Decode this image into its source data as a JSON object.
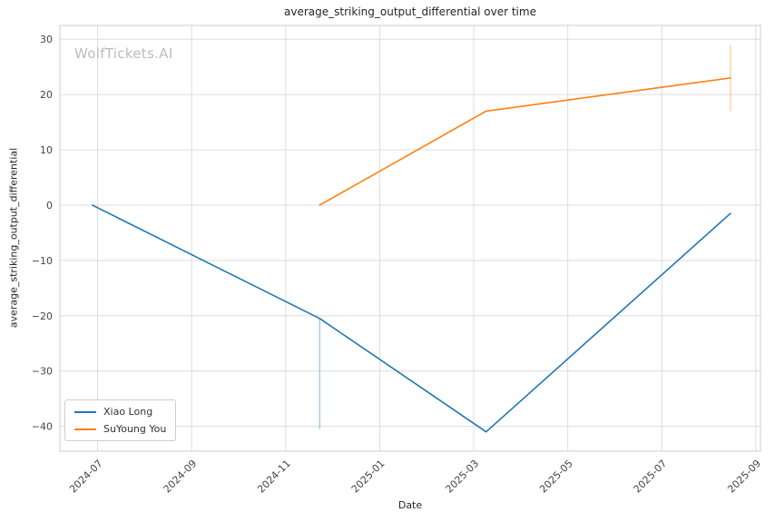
{
  "watermark": "WolfTickets.AI",
  "chart_data": {
    "type": "line",
    "title": "average_striking_output_differential over time",
    "xlabel": "Date",
    "ylabel": "average_striking_output_differential",
    "grid": true,
    "legend_position": "lower left",
    "xlim": [
      "2024-06-07",
      "2025-09-04"
    ],
    "ylim": [
      -44.5,
      32.5
    ],
    "x_ticks": [
      {
        "value": "2024-07",
        "label": "2024-07"
      },
      {
        "value": "2024-09",
        "label": "2024-09"
      },
      {
        "value": "2024-11",
        "label": "2024-11"
      },
      {
        "value": "2025-01",
        "label": "2025-01"
      },
      {
        "value": "2025-03",
        "label": "2025-03"
      },
      {
        "value": "2025-05",
        "label": "2025-05"
      },
      {
        "value": "2025-07",
        "label": "2025-07"
      },
      {
        "value": "2025-09",
        "label": "2025-09"
      }
    ],
    "y_ticks": [
      {
        "value": -40,
        "label": "−40"
      },
      {
        "value": -30,
        "label": "−30"
      },
      {
        "value": -20,
        "label": "−20"
      },
      {
        "value": -10,
        "label": "−10"
      },
      {
        "value": 0,
        "label": "0"
      },
      {
        "value": 10,
        "label": "10"
      },
      {
        "value": 20,
        "label": "20"
      },
      {
        "value": 30,
        "label": "30"
      }
    ],
    "series": [
      {
        "name": "Xiao Long",
        "color": "#1f77b4",
        "points": [
          {
            "date": "2024-06-28",
            "value": 0
          },
          {
            "date": "2024-11-23",
            "value": -20.5
          },
          {
            "date": "2025-03-09",
            "value": -41
          },
          {
            "date": "2025-08-15",
            "value": -1.5
          }
        ],
        "error_bars": [
          {
            "date": "2024-11-23",
            "from": -40.5,
            "to": -20.5
          }
        ]
      },
      {
        "name": "SuYoung You",
        "color": "#ff7f0e",
        "points": [
          {
            "date": "2024-11-23",
            "value": 0
          },
          {
            "date": "2025-03-09",
            "value": 17
          },
          {
            "date": "2025-08-15",
            "value": 23
          }
        ],
        "error_bars": [
          {
            "date": "2025-08-15",
            "from": 17,
            "to": 29
          }
        ]
      }
    ]
  }
}
